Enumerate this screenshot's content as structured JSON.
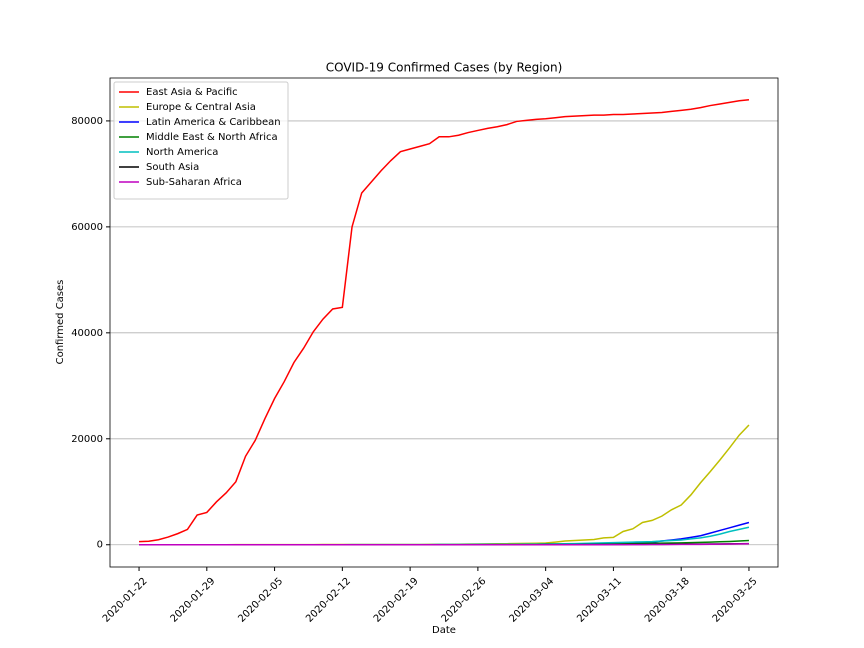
{
  "chart_data": {
    "type": "line",
    "title": "COVID-19 Confirmed Cases (by Region)",
    "xlabel": "Date",
    "ylabel": "Confirmed Cases",
    "x": [
      "2020-01-22",
      "2020-01-23",
      "2020-01-24",
      "2020-01-25",
      "2020-01-26",
      "2020-01-27",
      "2020-01-28",
      "2020-01-29",
      "2020-01-30",
      "2020-01-31",
      "2020-02-01",
      "2020-02-02",
      "2020-02-03",
      "2020-02-04",
      "2020-02-05",
      "2020-02-06",
      "2020-02-07",
      "2020-02-08",
      "2020-02-09",
      "2020-02-10",
      "2020-02-11",
      "2020-02-12",
      "2020-02-13",
      "2020-02-14",
      "2020-02-15",
      "2020-02-16",
      "2020-02-17",
      "2020-02-18",
      "2020-02-19",
      "2020-02-20",
      "2020-02-21",
      "2020-02-22",
      "2020-02-23",
      "2020-02-24",
      "2020-02-25",
      "2020-02-26",
      "2020-02-27",
      "2020-02-28",
      "2020-02-29",
      "2020-03-01",
      "2020-03-02",
      "2020-03-03",
      "2020-03-04",
      "2020-03-05",
      "2020-03-06",
      "2020-03-07",
      "2020-03-08",
      "2020-03-09",
      "2020-03-10",
      "2020-03-11",
      "2020-03-12",
      "2020-03-13",
      "2020-03-14",
      "2020-03-15",
      "2020-03-16",
      "2020-03-17",
      "2020-03-18",
      "2020-03-19",
      "2020-03-20",
      "2020-03-21",
      "2020-03-22",
      "2020-03-23",
      "2020-03-24",
      "2020-03-25"
    ],
    "series": [
      {
        "name": "East Asia & Pacific",
        "color": "#ff0000",
        "values": [
          600,
          650,
          950,
          1450,
          2100,
          2900,
          5600,
          6100,
          8100,
          9800,
          11900,
          16700,
          19700,
          23800,
          27600,
          30800,
          34400,
          37100,
          40200,
          42600,
          44500,
          44800,
          60000,
          66400,
          68500,
          70600,
          72500,
          74200,
          74700,
          75200,
          75700,
          77000,
          77000,
          77300,
          77800,
          78200,
          78600,
          78900,
          79300,
          79900,
          80100,
          80300,
          80400,
          80600,
          80800,
          80900,
          81000,
          81100,
          81100,
          81200,
          81200,
          81300,
          81400,
          81500,
          81600,
          81800,
          82000,
          82200,
          82500,
          82900,
          83200,
          83500,
          83800,
          84000
        ]
      },
      {
        "name": "Europe & Central Asia",
        "color": "#bfbf00",
        "values": [
          0,
          0,
          0,
          3,
          3,
          4,
          4,
          4,
          10,
          12,
          14,
          16,
          18,
          20,
          22,
          25,
          30,
          32,
          34,
          36,
          38,
          40,
          42,
          44,
          46,
          48,
          50,
          52,
          54,
          56,
          60,
          75,
          80,
          100,
          120,
          140,
          160,
          180,
          200,
          230,
          260,
          290,
          330,
          500,
          700,
          800,
          900,
          1000,
          1300,
          1400,
          2500,
          3000,
          4200,
          4600,
          5400,
          6600,
          7500,
          9400,
          11700,
          13800,
          16000,
          18300,
          20700,
          22600
        ]
      },
      {
        "name": "Latin America & Caribbean",
        "color": "#0000ff",
        "values": [
          0,
          0,
          0,
          0,
          0,
          0,
          0,
          0,
          0,
          0,
          0,
          0,
          0,
          0,
          0,
          0,
          0,
          0,
          0,
          0,
          0,
          0,
          0,
          0,
          0,
          0,
          0,
          0,
          0,
          0,
          0,
          0,
          0,
          0,
          0,
          1,
          1,
          1,
          1,
          2,
          5,
          6,
          8,
          10,
          15,
          20,
          30,
          50,
          80,
          150,
          200,
          300,
          400,
          500,
          700,
          900,
          1100,
          1400,
          1700,
          2200,
          2700,
          3200,
          3700,
          4200
        ]
      },
      {
        "name": "Middle East & North Africa",
        "color": "#008000",
        "values": [
          0,
          0,
          0,
          0,
          0,
          0,
          0,
          4,
          4,
          4,
          4,
          4,
          4,
          4,
          4,
          5,
          5,
          5,
          5,
          5,
          5,
          5,
          5,
          5,
          5,
          5,
          5,
          5,
          5,
          6,
          10,
          15,
          20,
          30,
          40,
          50,
          60,
          70,
          80,
          100,
          110,
          120,
          130,
          140,
          150,
          160,
          170,
          180,
          190,
          200,
          220,
          240,
          260,
          280,
          300,
          330,
          360,
          400,
          450,
          500,
          560,
          620,
          700,
          800
        ]
      },
      {
        "name": "North America",
        "color": "#00bfbf",
        "values": [
          1,
          1,
          2,
          2,
          5,
          5,
          5,
          6,
          6,
          8,
          8,
          9,
          11,
          11,
          12,
          12,
          12,
          12,
          12,
          12,
          12,
          12,
          13,
          13,
          15,
          15,
          15,
          15,
          15,
          15,
          15,
          50,
          50,
          50,
          55,
          60,
          60,
          62,
          70,
          75,
          90,
          105,
          125,
          150,
          180,
          220,
          260,
          300,
          350,
          400,
          450,
          500,
          550,
          600,
          700,
          800,
          900,
          1100,
          1300,
          1600,
          2000,
          2500,
          2900,
          3300
        ]
      },
      {
        "name": "South Asia",
        "color": "#000000",
        "values": [
          0,
          0,
          0,
          0,
          0,
          0,
          0,
          0,
          1,
          1,
          1,
          1,
          2,
          3,
          3,
          3,
          3,
          3,
          3,
          3,
          3,
          3,
          3,
          3,
          3,
          3,
          3,
          3,
          3,
          3,
          3,
          3,
          3,
          3,
          3,
          3,
          3,
          3,
          3,
          5,
          6,
          10,
          15,
          20,
          25,
          30,
          35,
          40,
          45,
          50,
          55,
          60,
          65,
          70,
          80,
          90,
          100,
          110,
          120,
          140,
          150,
          170,
          190,
          210
        ]
      },
      {
        "name": "Sub-Saharan Africa",
        "color": "#bf00bf",
        "values": [
          0,
          0,
          0,
          0,
          0,
          0,
          0,
          0,
          0,
          0,
          0,
          0,
          0,
          0,
          0,
          0,
          0,
          0,
          0,
          0,
          0,
          0,
          0,
          0,
          0,
          0,
          0,
          0,
          0,
          0,
          0,
          0,
          0,
          0,
          0,
          0,
          0,
          1,
          1,
          2,
          2,
          3,
          3,
          4,
          5,
          6,
          8,
          10,
          12,
          15,
          20,
          25,
          30,
          35,
          40,
          50,
          60,
          70,
          80,
          100,
          120,
          140,
          170,
          200
        ]
      }
    ],
    "xlim": [
      "2020-01-19",
      "2020-03-28"
    ],
    "xticks": [
      "2020-01-22",
      "2020-01-29",
      "2020-02-05",
      "2020-02-12",
      "2020-02-19",
      "2020-02-26",
      "2020-03-04",
      "2020-03-11",
      "2020-03-18",
      "2020-03-25"
    ],
    "ylim": [
      -4200,
      88100
    ],
    "yticks": [
      0,
      20000,
      40000,
      60000,
      80000
    ],
    "grid": true,
    "legend": "upper left"
  }
}
